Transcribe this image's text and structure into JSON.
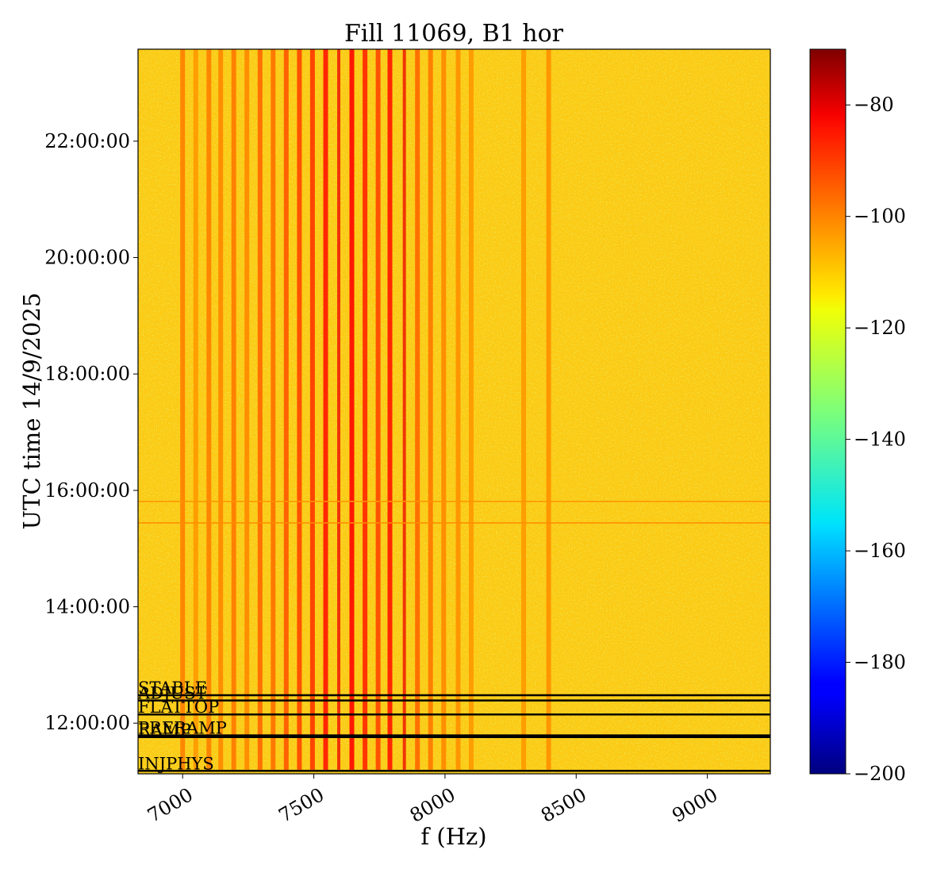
{
  "chart_data": {
    "type": "heatmap",
    "title": "Fill 11069, B1 hor",
    "xlabel": "f (Hz)",
    "ylabel": "UTC time 14/9/2025",
    "xlim": [
      6830,
      9240
    ],
    "ylim_hours": [
      11.13,
      23.58
    ],
    "x_ticks": [
      {
        "value": 7000,
        "label": "7000"
      },
      {
        "value": 7500,
        "label": "7500"
      },
      {
        "value": 8000,
        "label": "8000"
      },
      {
        "value": 8500,
        "label": "8500"
      },
      {
        "value": 9000,
        "label": "9000"
      }
    ],
    "y_ticks": [
      {
        "value": 12,
        "label": "12:00:00"
      },
      {
        "value": 14,
        "label": "14:00:00"
      },
      {
        "value": 16,
        "label": "16:00:00"
      },
      {
        "value": 18,
        "label": "18:00:00"
      },
      {
        "value": 20,
        "label": "20:00:00"
      },
      {
        "value": 22,
        "label": "22:00:00"
      }
    ],
    "colorbar": {
      "colormap": "jet",
      "range": [
        -200,
        -70
      ],
      "ticks": [
        {
          "value": -80,
          "label": "−80"
        },
        {
          "value": -100,
          "label": "−100"
        },
        {
          "value": -120,
          "label": "−120"
        },
        {
          "value": -140,
          "label": "−140"
        },
        {
          "value": -160,
          "label": "−160"
        },
        {
          "value": -180,
          "label": "−180"
        },
        {
          "value": -200,
          "label": "−200"
        }
      ]
    },
    "background_level": -112,
    "lines": [
      {
        "f": 7000,
        "level": -103,
        "start": 11.2,
        "end": 23.58
      },
      {
        "f": 7050,
        "level": -106,
        "start": 11.2,
        "end": 23.58
      },
      {
        "f": 7100,
        "level": -103,
        "start": 11.2,
        "end": 23.58
      },
      {
        "f": 7145,
        "level": -104,
        "start": 11.2,
        "end": 23.58
      },
      {
        "f": 7195,
        "level": -102,
        "start": 11.2,
        "end": 23.58
      },
      {
        "f": 7245,
        "level": -104,
        "start": 11.2,
        "end": 23.58
      },
      {
        "f": 7295,
        "level": -100,
        "start": 11.2,
        "end": 23.58
      },
      {
        "f": 7345,
        "level": -101,
        "start": 11.2,
        "end": 23.58
      },
      {
        "f": 7395,
        "level": -98,
        "start": 11.2,
        "end": 23.58
      },
      {
        "f": 7445,
        "level": -96,
        "start": 11.2,
        "end": 23.58
      },
      {
        "f": 7495,
        "level": -94,
        "start": 11.2,
        "end": 23.58
      },
      {
        "f": 7545,
        "level": -90,
        "start": 11.2,
        "end": 23.58
      },
      {
        "f": 7595,
        "level": -84,
        "start": 11.2,
        "end": 23.58
      },
      {
        "f": 7645,
        "level": -88,
        "start": 11.2,
        "end": 23.58
      },
      {
        "f": 7695,
        "level": -92,
        "start": 11.2,
        "end": 23.58
      },
      {
        "f": 7745,
        "level": -96,
        "start": 11.2,
        "end": 23.58
      },
      {
        "f": 7790,
        "level": -90,
        "start": 11.2,
        "end": 23.58
      },
      {
        "f": 7845,
        "level": -84,
        "start": 11.2,
        "end": 23.58
      },
      {
        "f": 7895,
        "level": -100,
        "start": 11.2,
        "end": 23.58
      },
      {
        "f": 7945,
        "level": -102,
        "start": 11.2,
        "end": 23.58
      },
      {
        "f": 7995,
        "level": -104,
        "start": 11.2,
        "end": 23.58
      },
      {
        "f": 8050,
        "level": -105,
        "start": 11.2,
        "end": 23.58
      },
      {
        "f": 8100,
        "level": -106,
        "start": 11.2,
        "end": 23.58
      },
      {
        "f": 8300,
        "level": -106,
        "start": 11.2,
        "end": 23.58
      },
      {
        "f": 8395,
        "level": -105,
        "start": 11.2,
        "end": 23.58
      }
    ],
    "horizontal_artifacts": [
      {
        "time": 15.44,
        "level": -104
      },
      {
        "time": 15.81,
        "level": -105
      }
    ],
    "modes": [
      {
        "name": "STABLE",
        "time": 12.48
      },
      {
        "name": "ADJUST",
        "time": 12.39
      },
      {
        "name": "FLATTOP",
        "time": 12.15
      },
      {
        "name": "PRERAMP",
        "time": 11.79
      },
      {
        "name": "RAMP",
        "time": 11.76
      },
      {
        "name": "INJPHYS",
        "time": 11.18
      }
    ]
  }
}
